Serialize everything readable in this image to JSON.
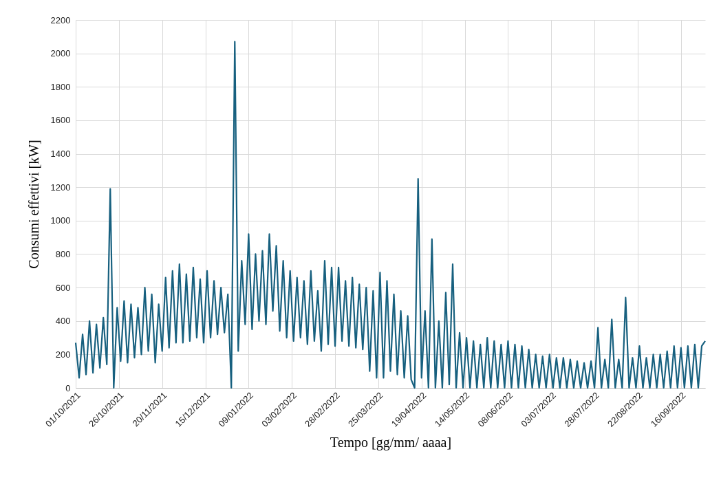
{
  "chart_data": {
    "type": "line",
    "xlabel": "Tempo [gg/mm/ aaaa]",
    "ylabel": "Consumi effettivi [kW]",
    "x": [
      "2021-10-01",
      "2021-10-03",
      "2021-10-05",
      "2021-10-07",
      "2021-10-09",
      "2021-10-11",
      "2021-10-13",
      "2021-10-15",
      "2021-10-17",
      "2021-10-19",
      "2021-10-21",
      "2021-10-23",
      "2021-10-25",
      "2021-10-27",
      "2021-10-29",
      "2021-10-31",
      "2021-11-02",
      "2021-11-04",
      "2021-11-06",
      "2021-11-08",
      "2021-11-10",
      "2021-11-12",
      "2021-11-14",
      "2021-11-16",
      "2021-11-18",
      "2021-11-20",
      "2021-11-22",
      "2021-11-24",
      "2021-11-26",
      "2021-11-28",
      "2021-11-30",
      "2021-12-02",
      "2021-12-04",
      "2021-12-06",
      "2021-12-08",
      "2021-12-10",
      "2021-12-12",
      "2021-12-14",
      "2021-12-16",
      "2021-12-18",
      "2021-12-20",
      "2021-12-22",
      "2021-12-24",
      "2021-12-26",
      "2021-12-28",
      "2021-12-30",
      "2022-01-01",
      "2022-01-03",
      "2022-01-05",
      "2022-01-07",
      "2022-01-09",
      "2022-01-11",
      "2022-01-13",
      "2022-01-15",
      "2022-01-17",
      "2022-01-19",
      "2022-01-21",
      "2022-01-23",
      "2022-01-25",
      "2022-01-27",
      "2022-01-29",
      "2022-01-31",
      "2022-02-02",
      "2022-02-04",
      "2022-02-06",
      "2022-02-08",
      "2022-02-10",
      "2022-02-12",
      "2022-02-14",
      "2022-02-16",
      "2022-02-18",
      "2022-02-20",
      "2022-02-22",
      "2022-02-24",
      "2022-02-26",
      "2022-02-28",
      "2022-03-02",
      "2022-03-04",
      "2022-03-06",
      "2022-03-08",
      "2022-03-10",
      "2022-03-12",
      "2022-03-14",
      "2022-03-16",
      "2022-03-18",
      "2022-03-20",
      "2022-03-22",
      "2022-03-24",
      "2022-03-26",
      "2022-03-28",
      "2022-03-30",
      "2022-04-01",
      "2022-04-03",
      "2022-04-05",
      "2022-04-07",
      "2022-04-09",
      "2022-04-11",
      "2022-04-13",
      "2022-04-15",
      "2022-04-17",
      "2022-04-19",
      "2022-04-21",
      "2022-04-23",
      "2022-04-25",
      "2022-04-27",
      "2022-04-29",
      "2022-05-01",
      "2022-05-03",
      "2022-05-05",
      "2022-05-07",
      "2022-05-09",
      "2022-05-11",
      "2022-05-13",
      "2022-05-15",
      "2022-05-17",
      "2022-05-19",
      "2022-05-21",
      "2022-05-23",
      "2022-05-25",
      "2022-05-27",
      "2022-05-29",
      "2022-05-31",
      "2022-06-02",
      "2022-06-04",
      "2022-06-06",
      "2022-06-08",
      "2022-06-10",
      "2022-06-12",
      "2022-06-14",
      "2022-06-16",
      "2022-06-18",
      "2022-06-20",
      "2022-06-22",
      "2022-06-24",
      "2022-06-26",
      "2022-06-28",
      "2022-06-30",
      "2022-07-02",
      "2022-07-04",
      "2022-07-06",
      "2022-07-08",
      "2022-07-10",
      "2022-07-12",
      "2022-07-14",
      "2022-07-16",
      "2022-07-18",
      "2022-07-20",
      "2022-07-22",
      "2022-07-24",
      "2022-07-26",
      "2022-07-28",
      "2022-07-30",
      "2022-08-01",
      "2022-08-03",
      "2022-08-05",
      "2022-08-07",
      "2022-08-09",
      "2022-08-11",
      "2022-08-13",
      "2022-08-15",
      "2022-08-17",
      "2022-08-19",
      "2022-08-21",
      "2022-08-23",
      "2022-08-25",
      "2022-08-27",
      "2022-08-29",
      "2022-08-31",
      "2022-09-02",
      "2022-09-04",
      "2022-09-06",
      "2022-09-08",
      "2022-09-10",
      "2022-09-12",
      "2022-09-14",
      "2022-09-16",
      "2022-09-18",
      "2022-09-20",
      "2022-09-22",
      "2022-09-24",
      "2022-09-26",
      "2022-09-28",
      "2022-09-30"
    ],
    "series": [
      {
        "color": "#17607f",
        "values": [
          270,
          60,
          320,
          80,
          400,
          90,
          380,
          120,
          420,
          140,
          1190,
          0,
          480,
          160,
          520,
          150,
          500,
          180,
          480,
          200,
          600,
          220,
          560,
          150,
          500,
          220,
          660,
          240,
          700,
          270,
          740,
          270,
          680,
          280,
          720,
          300,
          650,
          270,
          700,
          300,
          640,
          320,
          600,
          330,
          560,
          0,
          2070,
          220,
          760,
          380,
          920,
          350,
          800,
          400,
          820,
          380,
          920,
          460,
          850,
          340,
          760,
          300,
          700,
          280,
          660,
          300,
          640,
          260,
          700,
          280,
          580,
          220,
          760,
          260,
          720,
          250,
          720,
          280,
          640,
          250,
          660,
          240,
          620,
          230,
          600,
          100,
          580,
          60,
          690,
          60,
          640,
          100,
          560,
          80,
          460,
          60,
          430,
          50,
          0,
          1250,
          60,
          460,
          0,
          890,
          0,
          400,
          0,
          570,
          20,
          740,
          0,
          330,
          0,
          300,
          0,
          280,
          0,
          260,
          0,
          300,
          0,
          280,
          0,
          260,
          0,
          280,
          0,
          260,
          0,
          250,
          0,
          230,
          0,
          200,
          0,
          190,
          0,
          200,
          0,
          180,
          0,
          180,
          0,
          170,
          0,
          160,
          0,
          150,
          0,
          160,
          0,
          360,
          0,
          170,
          0,
          410,
          0,
          170,
          0,
          540,
          0,
          180,
          0,
          250,
          0,
          180,
          0,
          200,
          0,
          200,
          0,
          220,
          0,
          250,
          0,
          240,
          0,
          250,
          0,
          260,
          0,
          250,
          280
        ]
      }
    ],
    "xlim": [
      "2021-10-01",
      "2022-09-30"
    ],
    "xticks": [
      {
        "value": "2021-10-01",
        "label": "01/10/2021"
      },
      {
        "value": "2021-10-26",
        "label": "26/10/2021"
      },
      {
        "value": "2021-11-20",
        "label": "20/11/2021"
      },
      {
        "value": "2021-12-15",
        "label": "15/12/2021"
      },
      {
        "value": "2022-01-09",
        "label": "09/01/2022"
      },
      {
        "value": "2022-02-03",
        "label": "03/02/2022"
      },
      {
        "value": "2022-02-28",
        "label": "28/02/2022"
      },
      {
        "value": "2022-03-25",
        "label": "25/03/2022"
      },
      {
        "value": "2022-04-19",
        "label": "19/04/2022"
      },
      {
        "value": "2022-05-14",
        "label": "14/05/2022"
      },
      {
        "value": "2022-06-08",
        "label": "08/06/2022"
      },
      {
        "value": "2022-07-03",
        "label": "03/07/2022"
      },
      {
        "value": "2022-07-28",
        "label": "28/07/2022"
      },
      {
        "value": "2022-08-22",
        "label": "22/08/2022"
      },
      {
        "value": "2022-09-16",
        "label": "16/09/2022"
      }
    ],
    "ylim": [
      0,
      2200
    ],
    "yticks": [
      0,
      200,
      400,
      600,
      800,
      1000,
      1200,
      1400,
      1600,
      1800,
      2000,
      2200
    ],
    "grid": true,
    "marker": "none",
    "line_style": "solid"
  }
}
